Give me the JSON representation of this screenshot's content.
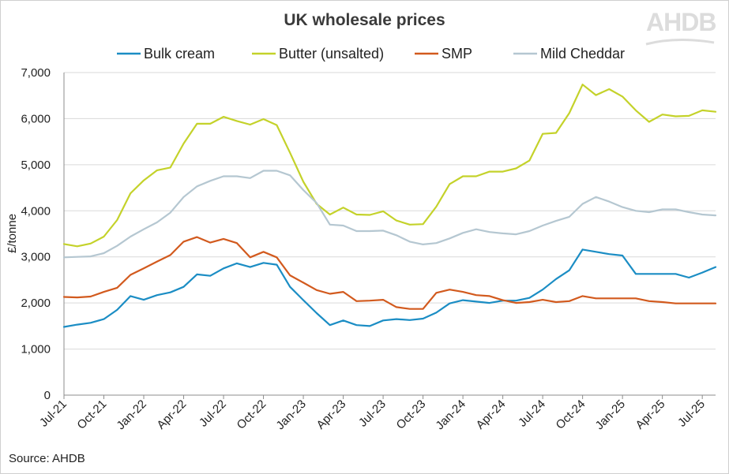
{
  "source": "Source: AHDB",
  "logo_text": "AHDB",
  "chart_data": {
    "type": "line",
    "title": "UK wholesale prices",
    "xlabel": "",
    "ylabel": "£/tonne",
    "ylim": [
      0,
      7000
    ],
    "yticks": [
      0,
      1000,
      2000,
      3000,
      4000,
      5000,
      6000,
      7000
    ],
    "ytick_labels": [
      "0",
      "1,000",
      "2,000",
      "3,000",
      "4,000",
      "5,000",
      "6,000",
      "7,000"
    ],
    "xtick_labels": [
      "Jul-21",
      "Oct-21",
      "Jan-22",
      "Apr-22",
      "Jul-22",
      "Oct-22",
      "Jan-23",
      "Apr-23",
      "Jul-23",
      "Oct-23",
      "Jan-24",
      "Apr-24",
      "Jul-24",
      "Oct-24",
      "Jan-25",
      "Apr-25",
      "Jul-25"
    ],
    "legend": "top",
    "grid": "horizontal",
    "series": [
      {
        "name": "Bulk cream",
        "color": "#1b8dc4",
        "values": [
          1480,
          1530,
          1570,
          1650,
          1850,
          2150,
          2070,
          2170,
          2230,
          2350,
          2620,
          2590,
          2750,
          2860,
          2780,
          2870,
          2830,
          2350,
          2060,
          1780,
          1520,
          1620,
          1520,
          1500,
          1620,
          1650,
          1630,
          1660,
          1790,
          1990,
          2060,
          2030,
          2000,
          2050,
          2050,
          2110,
          2290,
          2520,
          2710,
          3160,
          3110,
          3060,
          3030,
          2630,
          2630,
          2630,
          2630,
          2550,
          2660,
          2780
        ]
      },
      {
        "name": "Butter (unsalted)",
        "color": "#c4d22a",
        "values": [
          3280,
          3230,
          3290,
          3440,
          3800,
          4380,
          4660,
          4880,
          4940,
          5460,
          5890,
          5890,
          6040,
          5950,
          5870,
          5990,
          5860,
          5260,
          4630,
          4150,
          3920,
          4070,
          3920,
          3910,
          3990,
          3790,
          3700,
          3710,
          4090,
          4580,
          4750,
          4750,
          4850,
          4850,
          4920,
          5090,
          5670,
          5690,
          6120,
          6740,
          6510,
          6640,
          6480,
          6180,
          5930,
          6090,
          6050,
          6060,
          6180,
          6150
        ]
      },
      {
        "name": "SMP",
        "color": "#d25a1e",
        "values": [
          2130,
          2120,
          2140,
          2240,
          2330,
          2610,
          2750,
          2900,
          3040,
          3330,
          3430,
          3310,
          3390,
          3300,
          2990,
          3110,
          2990,
          2600,
          2440,
          2280,
          2200,
          2240,
          2040,
          2050,
          2070,
          1910,
          1870,
          1870,
          2220,
          2290,
          2240,
          2170,
          2150,
          2060,
          2000,
          2020,
          2070,
          2020,
          2040,
          2150,
          2100,
          2100,
          2100,
          2100,
          2040,
          2020,
          1990,
          1990,
          1990,
          1990
        ]
      },
      {
        "name": "Mild Cheddar",
        "color": "#b5c7d1",
        "values": [
          2990,
          3000,
          3010,
          3080,
          3240,
          3440,
          3600,
          3750,
          3960,
          4300,
          4530,
          4650,
          4750,
          4750,
          4710,
          4870,
          4870,
          4770,
          4450,
          4170,
          3700,
          3680,
          3560,
          3560,
          3570,
          3470,
          3330,
          3270,
          3300,
          3400,
          3520,
          3600,
          3540,
          3510,
          3490,
          3560,
          3680,
          3780,
          3870,
          4150,
          4300,
          4200,
          4080,
          4000,
          3970,
          4030,
          4030,
          3970,
          3920,
          3900
        ]
      }
    ]
  }
}
